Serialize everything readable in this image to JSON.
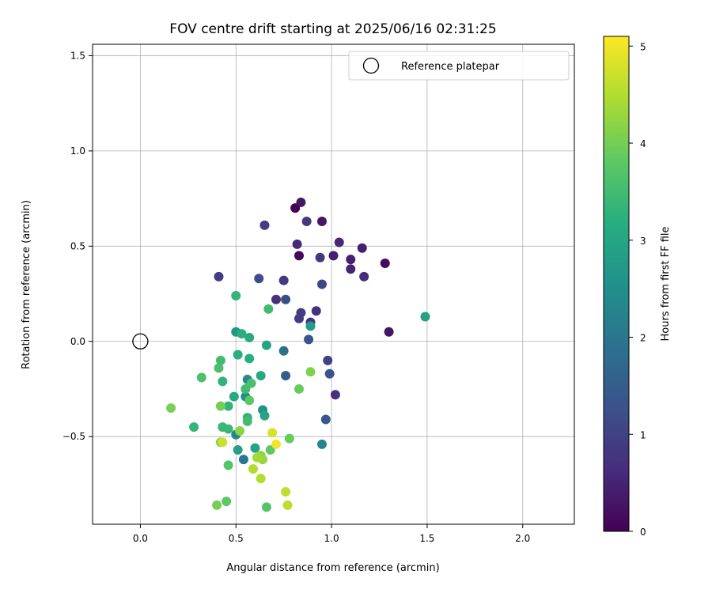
{
  "chart_data": {
    "type": "scatter",
    "title": "FOV centre drift starting at 2025/06/16 02:31:25",
    "xlabel": "Angular distance from reference (arcmin)",
    "ylabel": "Rotation from reference (arcmin)",
    "xlim": [
      -0.25,
      2.27
    ],
    "ylim": [
      -0.96,
      1.56
    ],
    "xticks": [
      "0.0",
      "0.5",
      "1.0",
      "1.5",
      "2.0"
    ],
    "yticks": [
      "−0.5",
      "0.0",
      "0.5",
      "1.0",
      "1.5"
    ],
    "grid": true,
    "legend": {
      "position": "top-right",
      "label": "Reference platepar"
    },
    "reference": {
      "x": 0.0,
      "y": 0.0
    },
    "colorbar": {
      "label": "Hours from first FF file",
      "colormap": "viridis",
      "range": [
        0,
        5.1
      ],
      "ticks": [
        "0",
        "1",
        "2",
        "3",
        "4",
        "5"
      ]
    },
    "points": [
      {
        "x": 0.81,
        "y": 0.7,
        "c": 0.0
      },
      {
        "x": 0.83,
        "y": 0.45,
        "c": 0.1
      },
      {
        "x": 1.28,
        "y": 0.41,
        "c": 0.15
      },
      {
        "x": 0.84,
        "y": 0.73,
        "c": 0.3
      },
      {
        "x": 0.95,
        "y": 0.63,
        "c": 0.3
      },
      {
        "x": 1.3,
        "y": 0.05,
        "c": 0.3
      },
      {
        "x": 1.16,
        "y": 0.49,
        "c": 0.45
      },
      {
        "x": 1.01,
        "y": 0.45,
        "c": 0.45
      },
      {
        "x": 1.1,
        "y": 0.43,
        "c": 0.45
      },
      {
        "x": 1.1,
        "y": 0.38,
        "c": 0.5
      },
      {
        "x": 1.04,
        "y": 0.52,
        "c": 0.55
      },
      {
        "x": 0.82,
        "y": 0.51,
        "c": 0.6
      },
      {
        "x": 1.17,
        "y": 0.34,
        "c": 0.65
      },
      {
        "x": 0.71,
        "y": 0.22,
        "c": 0.7
      },
      {
        "x": 0.92,
        "y": 0.16,
        "c": 0.7
      },
      {
        "x": 0.89,
        "y": 0.1,
        "c": 0.7
      },
      {
        "x": 1.02,
        "y": -0.28,
        "c": 0.7
      },
      {
        "x": 0.94,
        "y": 0.44,
        "c": 0.8
      },
      {
        "x": 0.75,
        "y": 0.32,
        "c": 0.8
      },
      {
        "x": 0.87,
        "y": 0.63,
        "c": 0.85
      },
      {
        "x": 0.65,
        "y": 0.61,
        "c": 0.9
      },
      {
        "x": 0.41,
        "y": 0.34,
        "c": 0.9
      },
      {
        "x": 0.84,
        "y": 0.15,
        "c": 0.9
      },
      {
        "x": 0.83,
        "y": 0.12,
        "c": 0.9
      },
      {
        "x": 0.98,
        "y": -0.1,
        "c": 1.0
      },
      {
        "x": 0.95,
        "y": 0.3,
        "c": 1.1
      },
      {
        "x": 0.62,
        "y": 0.33,
        "c": 1.2
      },
      {
        "x": 0.76,
        "y": 0.22,
        "c": 1.2
      },
      {
        "x": 0.88,
        "y": 0.01,
        "c": 1.3
      },
      {
        "x": 0.99,
        "y": -0.17,
        "c": 1.3
      },
      {
        "x": 0.97,
        "y": -0.41,
        "c": 1.4
      },
      {
        "x": 0.76,
        "y": -0.18,
        "c": 1.5
      },
      {
        "x": 0.75,
        "y": -0.05,
        "c": 1.9
      },
      {
        "x": 0.54,
        "y": -0.62,
        "c": 2.0
      },
      {
        "x": 0.95,
        "y": -0.54,
        "c": 2.3
      },
      {
        "x": 0.5,
        "y": -0.49,
        "c": 2.3
      },
      {
        "x": 0.56,
        "y": -0.2,
        "c": 2.4
      },
      {
        "x": 0.55,
        "y": -0.29,
        "c": 2.5
      },
      {
        "x": 0.64,
        "y": -0.36,
        "c": 2.6
      },
      {
        "x": 0.5,
        "y": 0.05,
        "c": 2.7
      },
      {
        "x": 0.89,
        "y": 0.08,
        "c": 2.8
      },
      {
        "x": 1.49,
        "y": 0.13,
        "c": 2.9
      },
      {
        "x": 0.51,
        "y": -0.57,
        "c": 2.9
      },
      {
        "x": 0.6,
        "y": -0.56,
        "c": 2.95
      },
      {
        "x": 0.65,
        "y": -0.39,
        "c": 3.0
      },
      {
        "x": 0.66,
        "y": -0.02,
        "c": 3.0
      },
      {
        "x": 0.63,
        "y": -0.18,
        "c": 3.05
      },
      {
        "x": 0.49,
        "y": -0.29,
        "c": 3.1
      },
      {
        "x": 0.57,
        "y": 0.02,
        "c": 3.1
      },
      {
        "x": 0.57,
        "y": -0.09,
        "c": 3.15
      },
      {
        "x": 0.53,
        "y": 0.04,
        "c": 3.2
      },
      {
        "x": 0.51,
        "y": -0.07,
        "c": 3.2
      },
      {
        "x": 0.5,
        "y": 0.24,
        "c": 3.3
      },
      {
        "x": 0.43,
        "y": -0.21,
        "c": 3.3
      },
      {
        "x": 0.46,
        "y": -0.34,
        "c": 3.3
      },
      {
        "x": 0.56,
        "y": -0.4,
        "c": 3.3
      },
      {
        "x": 0.28,
        "y": -0.45,
        "c": 3.35
      },
      {
        "x": 0.43,
        "y": -0.45,
        "c": 3.4
      },
      {
        "x": 0.46,
        "y": -0.46,
        "c": 3.4
      },
      {
        "x": 0.67,
        "y": 0.17,
        "c": 3.5
      },
      {
        "x": 0.42,
        "y": -0.1,
        "c": 3.5
      },
      {
        "x": 0.56,
        "y": -0.42,
        "c": 3.5
      },
      {
        "x": 0.55,
        "y": -0.25,
        "c": 3.5
      },
      {
        "x": 0.58,
        "y": -0.22,
        "c": 3.6
      },
      {
        "x": 0.41,
        "y": -0.14,
        "c": 3.6
      },
      {
        "x": 0.32,
        "y": -0.19,
        "c": 3.6
      },
      {
        "x": 0.46,
        "y": -0.65,
        "c": 3.7
      },
      {
        "x": 0.66,
        "y": -0.87,
        "c": 3.7
      },
      {
        "x": 0.45,
        "y": -0.84,
        "c": 3.8
      },
      {
        "x": 0.68,
        "y": -0.57,
        "c": 3.8
      },
      {
        "x": 0.57,
        "y": -0.31,
        "c": 3.8
      },
      {
        "x": 0.83,
        "y": -0.25,
        "c": 3.9
      },
      {
        "x": 0.78,
        "y": -0.51,
        "c": 3.9
      },
      {
        "x": 0.4,
        "y": -0.86,
        "c": 4.0
      },
      {
        "x": 0.42,
        "y": -0.34,
        "c": 4.0
      },
      {
        "x": 0.16,
        "y": -0.35,
        "c": 4.05
      },
      {
        "x": 0.42,
        "y": -0.53,
        "c": 4.1
      },
      {
        "x": 0.89,
        "y": -0.16,
        "c": 4.1
      },
      {
        "x": 0.52,
        "y": -0.47,
        "c": 4.2
      },
      {
        "x": 0.63,
        "y": -0.6,
        "c": 4.2
      },
      {
        "x": 0.64,
        "y": -0.62,
        "c": 4.3
      },
      {
        "x": 0.61,
        "y": -0.61,
        "c": 4.4
      },
      {
        "x": 0.59,
        "y": -0.67,
        "c": 4.5
      },
      {
        "x": 0.63,
        "y": -0.72,
        "c": 4.5
      },
      {
        "x": 0.76,
        "y": -0.79,
        "c": 4.6
      },
      {
        "x": 0.77,
        "y": -0.86,
        "c": 4.6
      },
      {
        "x": 0.43,
        "y": -0.53,
        "c": 4.7
      },
      {
        "x": 0.69,
        "y": -0.48,
        "c": 4.8
      },
      {
        "x": 0.71,
        "y": -0.54,
        "c": 5.0
      }
    ]
  }
}
